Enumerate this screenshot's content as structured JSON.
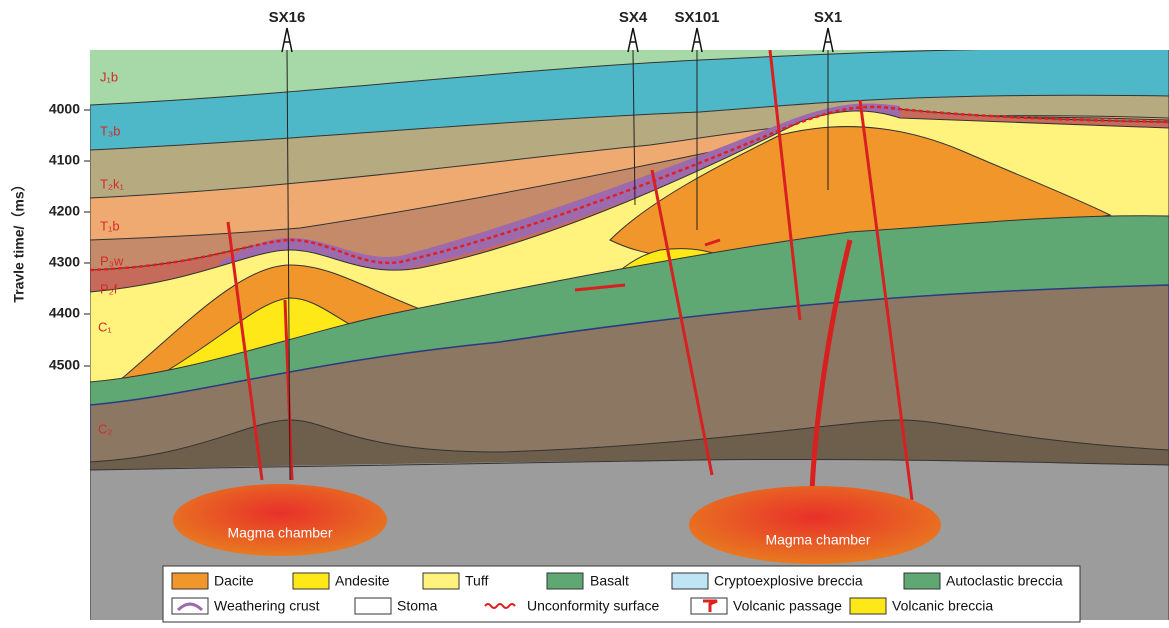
{
  "wells": [
    "SX16",
    "SX4",
    "SX101",
    "SX1"
  ],
  "axis": {
    "label": "Travle time/（ms）",
    "ticks": [
      "4000",
      "4100",
      "4200",
      "4300",
      "4400",
      "4500"
    ]
  },
  "layers": [
    "J₁b",
    "T₃b",
    "T₂k₁",
    "T₁b",
    "P₃w",
    "P₂f",
    "C₁",
    "C₂"
  ],
  "chambers": [
    "Magma chamber",
    "Magma chamber"
  ],
  "legend": {
    "row1": [
      "Dacite",
      "Andesite",
      "Tuff",
      "Basalt",
      "Cryptoexplosive breccia",
      "Autoclastic breccia"
    ],
    "row2": [
      "Weathering crust",
      "Stoma",
      "Unconformity surface",
      "Volcanic passage",
      "Volcanic breccia"
    ]
  }
}
